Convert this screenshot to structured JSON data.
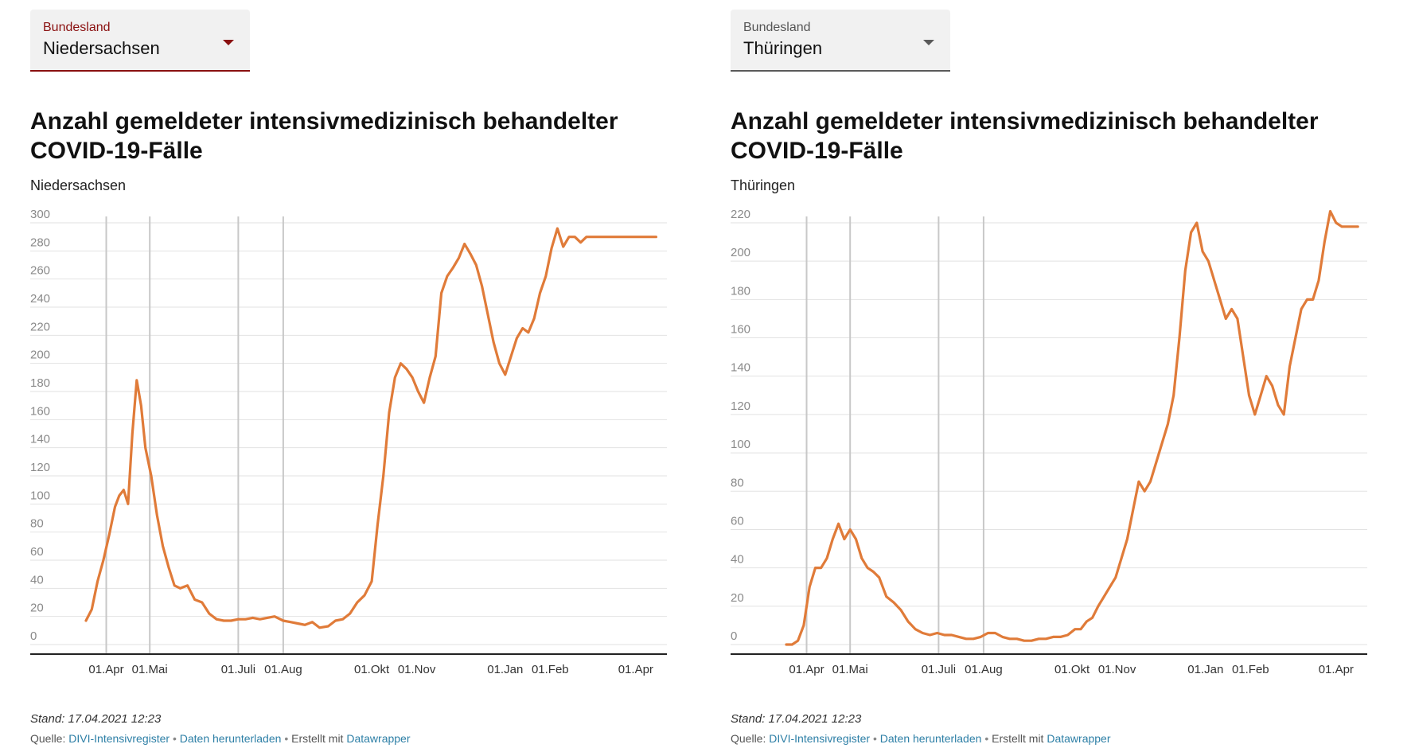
{
  "panels": [
    {
      "dropdown": {
        "label": "Bundesland",
        "value": "Niedersachsen"
      },
      "title": "Anzahl gemeldeter intensivmedizinisch behandelter COVID-19-Fälle",
      "subtitle": "Niedersachsen",
      "footer": {
        "stand": "Stand: 17.04.2021 12:23",
        "quelle_label": "Quelle:",
        "source_link": "DIVI-Intensivregister",
        "download_link": "Daten herunterladen",
        "created_label": "Erstellt mit",
        "tool_link": "Datawrapper",
        "separator": "•"
      },
      "chart_data": {
        "type": "line",
        "title": "Anzahl gemeldeter intensivmedizinisch behandelter COVID-19-Fälle",
        "subtitle": "Niedersachsen",
        "xlabel": "",
        "ylabel": "",
        "ylim": [
          0,
          300
        ],
        "yticks": [
          0,
          20,
          40,
          60,
          80,
          100,
          120,
          140,
          160,
          180,
          200,
          220,
          240,
          260,
          280,
          300
        ],
        "xlim": [
          "2020-03-18",
          "2021-04-17"
        ],
        "xticks": [
          {
            "date": "2020-04-01",
            "label": "01.Apr"
          },
          {
            "date": "2020-05-01",
            "label": "01.Mai"
          },
          {
            "date": "2020-07-01",
            "label": "01.Juli"
          },
          {
            "date": "2020-08-01",
            "label": "01.Aug"
          },
          {
            "date": "2020-10-01",
            "label": "01.Okt"
          },
          {
            "date": "2020-11-01",
            "label": "01.Nov"
          },
          {
            "date": "2021-01-01",
            "label": "01.Jan"
          },
          {
            "date": "2021-02-01",
            "label": "01.Feb"
          },
          {
            "date": "2021-04-01",
            "label": "01.Apr"
          }
        ],
        "vertical_lines": [
          "2020-04-01",
          "2020-05-01",
          "2020-07-01",
          "2020-08-01"
        ],
        "grid": true,
        "line_color": "#e07b39",
        "series": [
          {
            "x": [
              "2020-03-18",
              "2020-03-22",
              "2020-03-26",
              "2020-03-30",
              "2020-04-03",
              "2020-04-07",
              "2020-04-10",
              "2020-04-13",
              "2020-04-16",
              "2020-04-19",
              "2020-04-22",
              "2020-04-25",
              "2020-04-28",
              "2020-05-02",
              "2020-05-06",
              "2020-05-10",
              "2020-05-14",
              "2020-05-18",
              "2020-05-22",
              "2020-05-27",
              "2020-06-01",
              "2020-06-06",
              "2020-06-11",
              "2020-06-16",
              "2020-06-21",
              "2020-06-26",
              "2020-07-01",
              "2020-07-06",
              "2020-07-11",
              "2020-07-16",
              "2020-07-21",
              "2020-07-26",
              "2020-08-01",
              "2020-08-06",
              "2020-08-11",
              "2020-08-16",
              "2020-08-21",
              "2020-08-26",
              "2020-09-01",
              "2020-09-06",
              "2020-09-11",
              "2020-09-16",
              "2020-09-21",
              "2020-09-26",
              "2020-10-01",
              "2020-10-05",
              "2020-10-09",
              "2020-10-13",
              "2020-10-17",
              "2020-10-21",
              "2020-10-25",
              "2020-10-29",
              "2020-11-02",
              "2020-11-06",
              "2020-11-10",
              "2020-11-14",
              "2020-11-18",
              "2020-11-22",
              "2020-11-26",
              "2020-11-30",
              "2020-12-04",
              "2020-12-08",
              "2020-12-12",
              "2020-12-16",
              "2020-12-20",
              "2020-12-24",
              "2020-12-28",
              "2021-01-01",
              "2021-01-05",
              "2021-01-09",
              "2021-01-13",
              "2021-01-17",
              "2021-01-21",
              "2021-01-25",
              "2021-01-29",
              "2021-02-02",
              "2021-02-06",
              "2021-02-10",
              "2021-02-14",
              "2021-02-18",
              "2021-02-22",
              "2021-02-26",
              "2021-03-02",
              "2021-03-06",
              "2021-03-10",
              "2021-03-14",
              "2021-03-18",
              "2021-03-22",
              "2021-03-26",
              "2021-03-30",
              "2021-04-03",
              "2021-04-06",
              "2021-04-09",
              "2021-04-12",
              "2021-04-15"
            ],
            "values": [
              17,
              25,
              45,
              60,
              78,
              98,
              106,
              110,
              100,
              150,
              188,
              170,
              140,
              120,
              92,
              70,
              55,
              42,
              40,
              42,
              32,
              30,
              22,
              18,
              17,
              17,
              18,
              18,
              19,
              18,
              19,
              20,
              17,
              16,
              15,
              14,
              16,
              12,
              13,
              17,
              18,
              22,
              30,
              35,
              45,
              85,
              120,
              165,
              190,
              200,
              196,
              190,
              180,
              172,
              190,
              205,
              250,
              262,
              268,
              275,
              285,
              278,
              270,
              255,
              235,
              215,
              200,
              192,
              205,
              218,
              225,
              222,
              232,
              250,
              262,
              282,
              296,
              283,
              290,
              290,
              286,
              290,
              290,
              290,
              290,
              290,
              290,
              290,
              290,
              290,
              290,
              290,
              290,
              290,
              290
            ]
          }
        ]
      }
    },
    {
      "dropdown": {
        "label": "Bundesland",
        "value": "Thüringen"
      },
      "title": "Anzahl gemeldeter intensivmedizinisch behandelter COVID-19-Fälle",
      "subtitle": "Thüringen",
      "footer": {
        "stand": "Stand: 17.04.2021 12:23",
        "quelle_label": "Quelle:",
        "source_link": "DIVI-Intensivregister",
        "download_link": "Daten herunterladen",
        "created_label": "Erstellt mit",
        "tool_link": "Datawrapper",
        "separator": "•"
      },
      "chart_data": {
        "type": "line",
        "title": "Anzahl gemeldeter intensivmedizinisch behandelter COVID-19-Fälle",
        "subtitle": "Thüringen",
        "xlabel": "",
        "ylabel": "",
        "ylim": [
          0,
          220
        ],
        "yticks": [
          0,
          20,
          40,
          60,
          80,
          100,
          120,
          140,
          160,
          180,
          200,
          220
        ],
        "xlim": [
          "2020-03-18",
          "2021-04-17"
        ],
        "xticks": [
          {
            "date": "2020-04-01",
            "label": "01.Apr"
          },
          {
            "date": "2020-05-01",
            "label": "01.Mai"
          },
          {
            "date": "2020-07-01",
            "label": "01.Juli"
          },
          {
            "date": "2020-08-01",
            "label": "01.Aug"
          },
          {
            "date": "2020-10-01",
            "label": "01.Okt"
          },
          {
            "date": "2020-11-01",
            "label": "01.Nov"
          },
          {
            "date": "2021-01-01",
            "label": "01.Jan"
          },
          {
            "date": "2021-02-01",
            "label": "01.Feb"
          },
          {
            "date": "2021-04-01",
            "label": "01.Apr"
          }
        ],
        "vertical_lines": [
          "2020-04-01",
          "2020-05-01",
          "2020-07-01",
          "2020-08-01"
        ],
        "grid": true,
        "line_color": "#e07b39",
        "series": [
          {
            "x": [
              "2020-03-18",
              "2020-03-22",
              "2020-03-26",
              "2020-03-30",
              "2020-04-03",
              "2020-04-07",
              "2020-04-11",
              "2020-04-15",
              "2020-04-19",
              "2020-04-23",
              "2020-04-27",
              "2020-05-01",
              "2020-05-05",
              "2020-05-09",
              "2020-05-13",
              "2020-05-17",
              "2020-05-21",
              "2020-05-26",
              "2020-05-31",
              "2020-06-05",
              "2020-06-10",
              "2020-06-15",
              "2020-06-20",
              "2020-06-25",
              "2020-06-30",
              "2020-07-05",
              "2020-07-10",
              "2020-07-15",
              "2020-07-20",
              "2020-07-25",
              "2020-07-30",
              "2020-08-04",
              "2020-08-09",
              "2020-08-14",
              "2020-08-19",
              "2020-08-24",
              "2020-08-29",
              "2020-09-03",
              "2020-09-08",
              "2020-09-13",
              "2020-09-18",
              "2020-09-23",
              "2020-09-28",
              "2020-10-03",
              "2020-10-07",
              "2020-10-11",
              "2020-10-15",
              "2020-10-19",
              "2020-10-23",
              "2020-10-27",
              "2020-10-31",
              "2020-11-04",
              "2020-11-08",
              "2020-11-12",
              "2020-11-16",
              "2020-11-20",
              "2020-11-24",
              "2020-11-28",
              "2020-12-02",
              "2020-12-06",
              "2020-12-10",
              "2020-12-14",
              "2020-12-18",
              "2020-12-22",
              "2020-12-26",
              "2020-12-30",
              "2021-01-03",
              "2021-01-07",
              "2021-01-11",
              "2021-01-15",
              "2021-01-19",
              "2021-01-23",
              "2021-01-27",
              "2021-01-31",
              "2021-02-04",
              "2021-02-08",
              "2021-02-12",
              "2021-02-16",
              "2021-02-20",
              "2021-02-24",
              "2021-02-28",
              "2021-03-04",
              "2021-03-08",
              "2021-03-12",
              "2021-03-16",
              "2021-03-20",
              "2021-03-24",
              "2021-03-28",
              "2021-04-01",
              "2021-04-05",
              "2021-04-09",
              "2021-04-13",
              "2021-04-16"
            ],
            "values": [
              0,
              0,
              2,
              10,
              30,
              40,
              40,
              45,
              55,
              63,
              55,
              60,
              55,
              45,
              40,
              38,
              35,
              25,
              22,
              18,
              12,
              8,
              6,
              5,
              6,
              5,
              5,
              4,
              3,
              3,
              4,
              6,
              6,
              4,
              3,
              3,
              2,
              2,
              3,
              3,
              4,
              4,
              5,
              8,
              8,
              12,
              14,
              20,
              25,
              30,
              35,
              45,
              55,
              70,
              85,
              80,
              85,
              95,
              105,
              115,
              130,
              160,
              195,
              215,
              220,
              205,
              200,
              190,
              180,
              170,
              175,
              170,
              150,
              130,
              120,
              130,
              140,
              135,
              125,
              120,
              145,
              160,
              175,
              180,
              180,
              190,
              210,
              226,
              220,
              218,
              218,
              218,
              218
            ]
          }
        ]
      }
    }
  ]
}
